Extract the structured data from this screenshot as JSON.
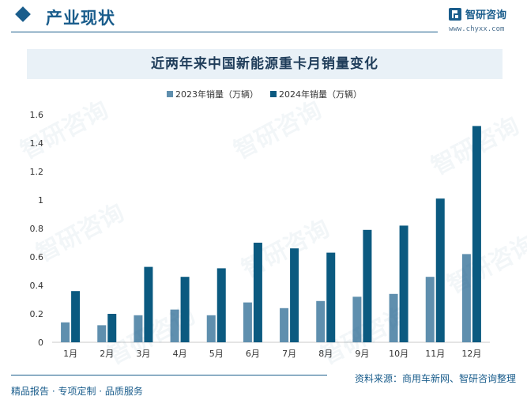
{
  "header": {
    "section_title": "产业现状",
    "brand_name": "智研咨询",
    "brand_url": "www.chyxx.com",
    "brand_color": "#1a5d8c"
  },
  "chart_data": {
    "type": "bar",
    "title": "近两年来中国新能源重卡月销量变化",
    "categories": [
      "1月",
      "2月",
      "3月",
      "4月",
      "5月",
      "6月",
      "7月",
      "8月",
      "9月",
      "10月",
      "11月",
      "12月"
    ],
    "series": [
      {
        "name": "2023年销量（万辆）",
        "color": "#5f8fae",
        "values": [
          0.14,
          0.12,
          0.19,
          0.23,
          0.19,
          0.28,
          0.24,
          0.29,
          0.32,
          0.34,
          0.46,
          0.62
        ]
      },
      {
        "name": "2024年销量（万辆）",
        "color": "#0b5a80",
        "values": [
          0.36,
          0.2,
          0.53,
          0.46,
          0.52,
          0.7,
          0.66,
          0.63,
          0.79,
          0.82,
          1.01,
          1.52
        ]
      }
    ],
    "ylim": [
      0,
      1.6
    ],
    "yticks": [
      "0",
      "0.2",
      "0.4",
      "0.6",
      "0.8",
      "1",
      "1.2",
      "1.4",
      "1.6"
    ],
    "grid": false,
    "legend_position": "top-center"
  },
  "footer": {
    "left_text": "精品报告 · 专项定制 · 品质服务",
    "source_text": "资料来源：商用车新网、智研咨询整理"
  }
}
